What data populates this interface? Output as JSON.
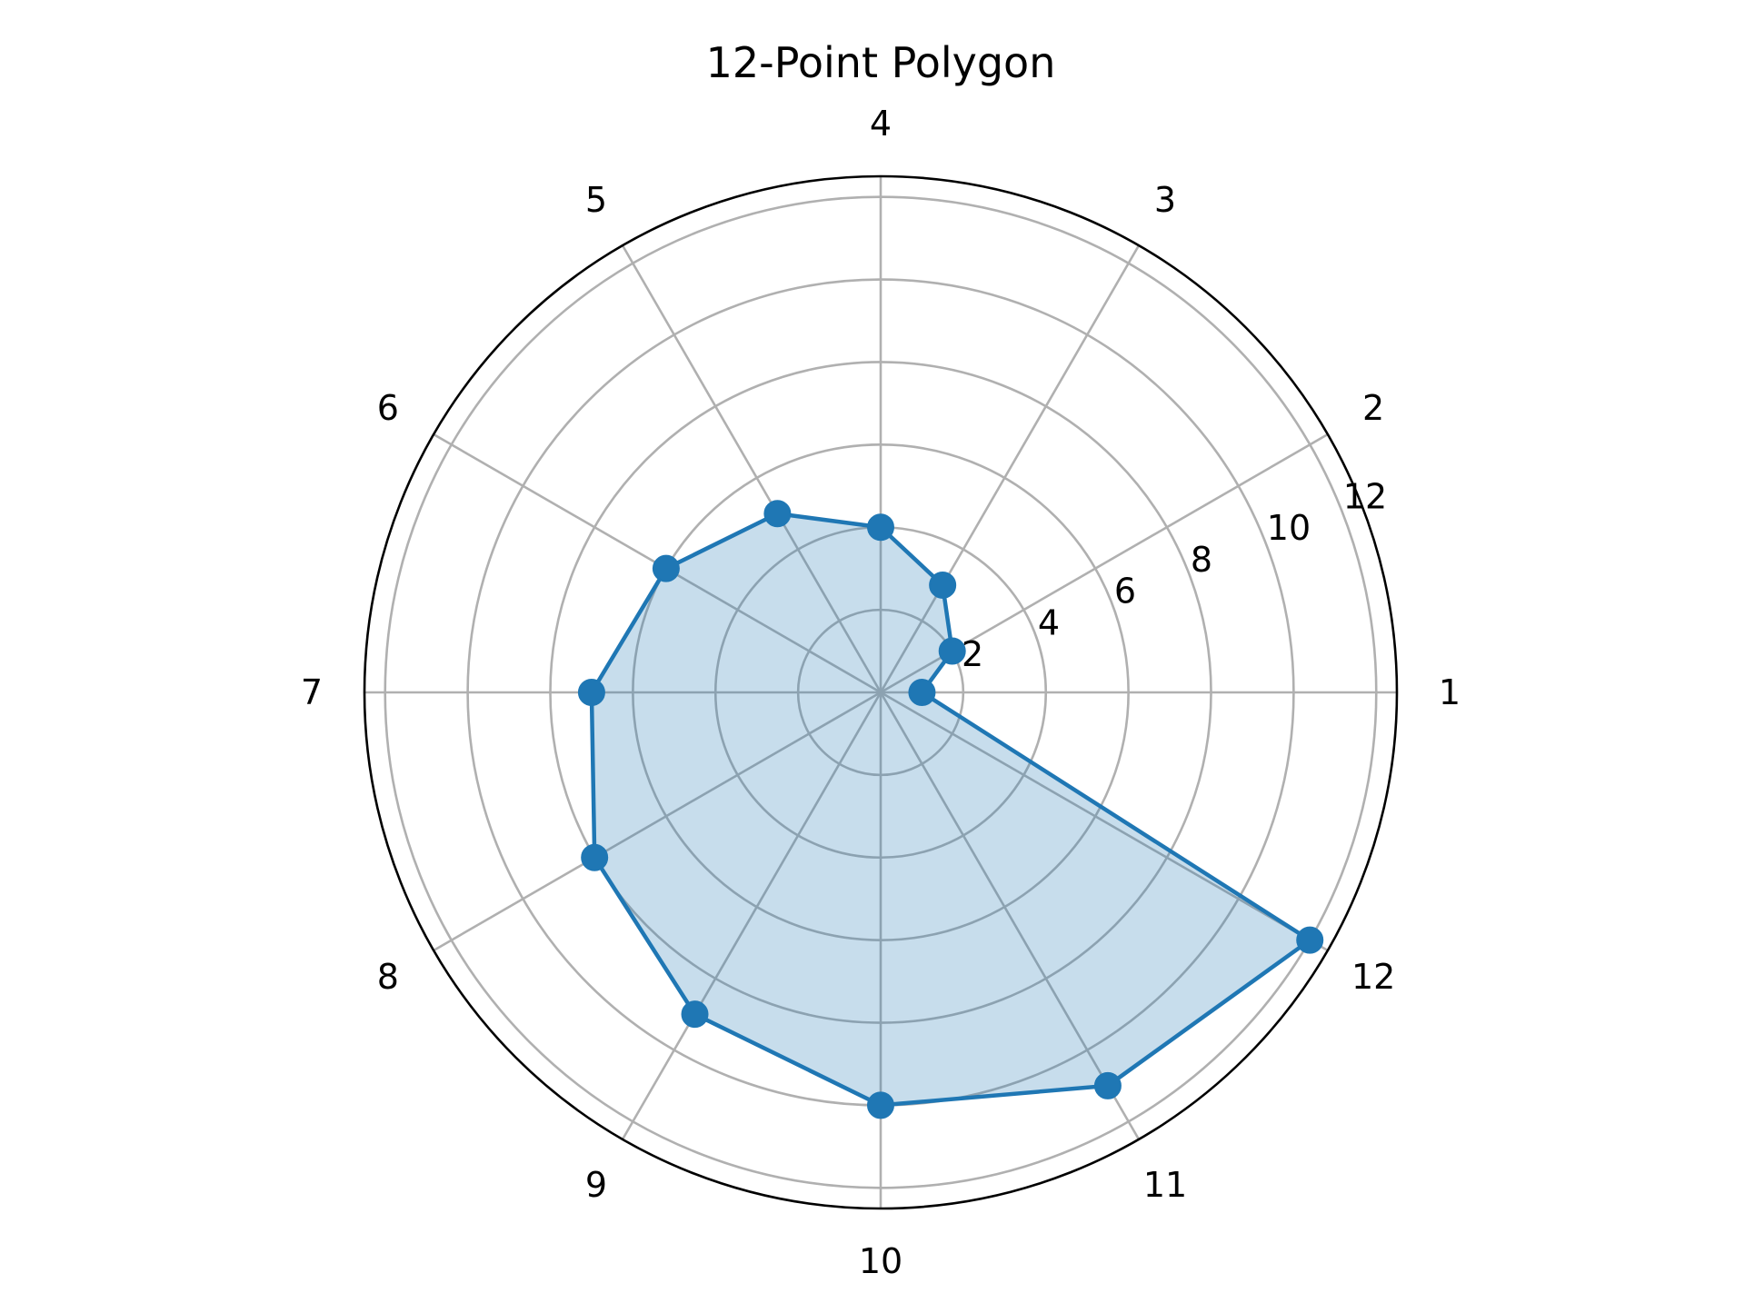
{
  "chart_data": {
    "type": "radar",
    "title": "12-Point Polygon",
    "categories": [
      "1",
      "2",
      "3",
      "4",
      "5",
      "6",
      "7",
      "8",
      "9",
      "10",
      "11",
      "12"
    ],
    "series": [
      {
        "values": [
          1,
          2,
          3,
          4,
          5,
          6,
          7,
          8,
          9,
          10,
          11,
          12
        ],
        "color": "#1f77b4",
        "marker": "circle",
        "filled": true
      }
    ],
    "radial_ticks": [
      2,
      4,
      6,
      8,
      10,
      12
    ],
    "rlim": [
      0,
      12.5
    ],
    "grid": true,
    "legend": "none"
  }
}
